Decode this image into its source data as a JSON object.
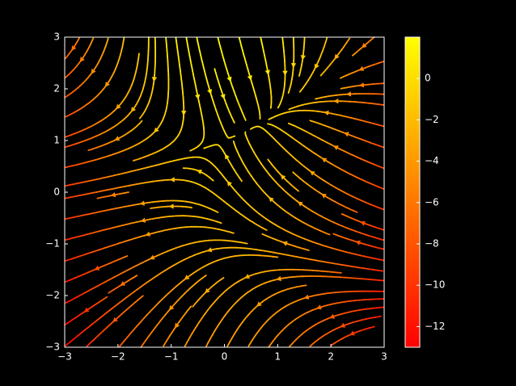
{
  "chart_data": {
    "type": "streamplot",
    "xlim": [
      -3,
      3
    ],
    "ylim": [
      -3,
      3
    ],
    "xticks": [
      {
        "value": -3,
        "label": "−3"
      },
      {
        "value": -2,
        "label": "−2"
      },
      {
        "value": -1,
        "label": "−1"
      },
      0,
      1,
      2,
      3
    ],
    "yticks": [
      {
        "value": -3,
        "label": "−3"
      },
      {
        "value": -2,
        "label": "−2"
      },
      {
        "value": -1,
        "label": "−1"
      },
      0,
      1,
      2,
      3
    ],
    "colormap": "autumn",
    "colorbar": {
      "clim": [
        -13,
        2
      ],
      "ticks": [
        {
          "value": -12,
          "label": "−12"
        },
        {
          "value": -10,
          "label": "−10"
        },
        {
          "value": -8,
          "label": "−8"
        },
        {
          "value": -6,
          "label": "−6"
        },
        {
          "value": -4,
          "label": "−4"
        },
        {
          "value": -2,
          "label": "−2"
        },
        0
      ]
    }
  }
}
